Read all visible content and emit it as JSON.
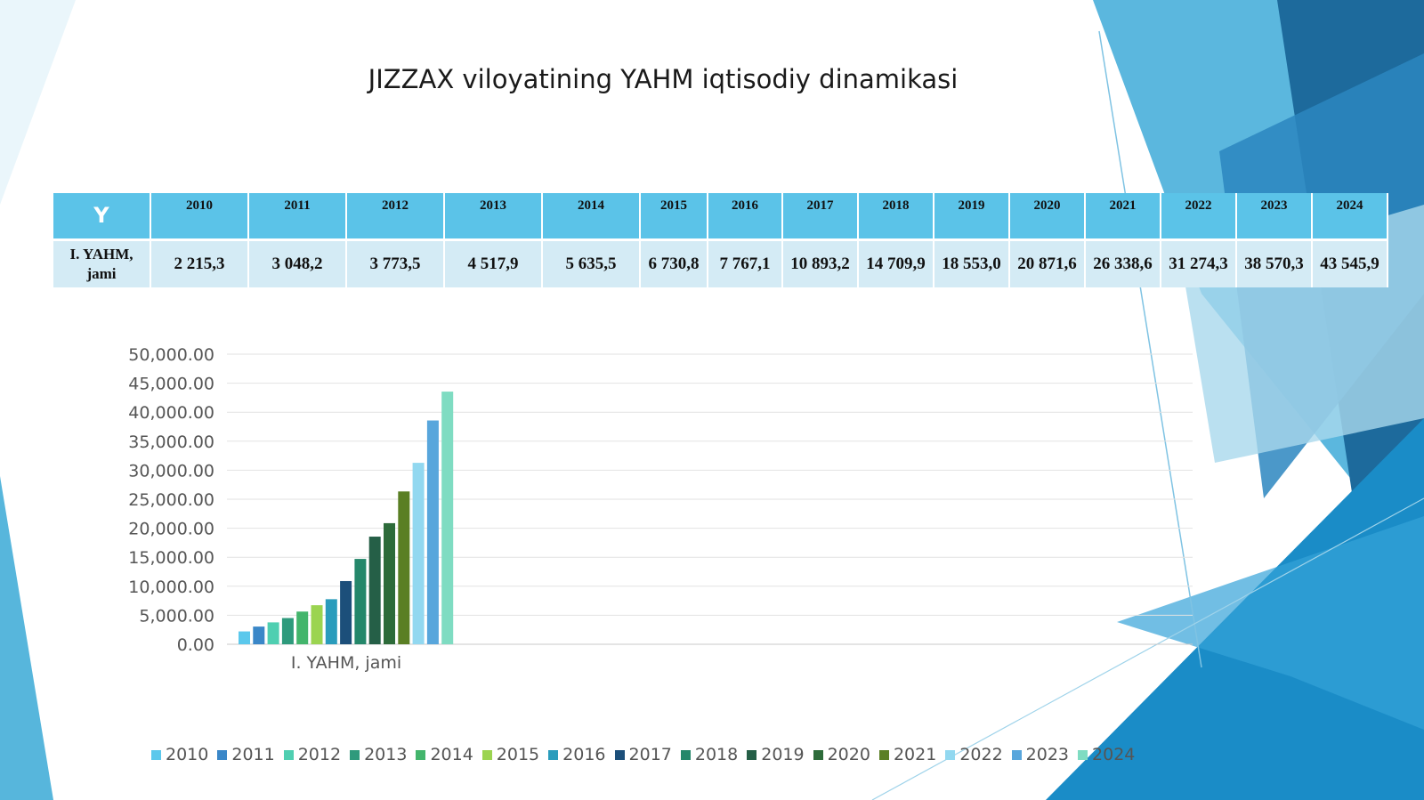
{
  "title": "JIZZAX viloyatining YAHM iqtisodiy dinamikasi",
  "table": {
    "corner": "Y",
    "row_label": "I. YAHM, jami",
    "years": [
      "2010",
      "2011",
      "2012",
      "2013",
      "2014",
      "2015",
      "2016",
      "2017",
      "2018",
      "2019",
      "2020",
      "2021",
      "2022",
      "2023",
      "2024"
    ],
    "values": [
      "2 215,3",
      "3 048,2",
      "3 773,5",
      "4 517,9",
      "5 635,5",
      "6 730,8",
      "7 767,1",
      "10 893,2",
      "14 709,9",
      "18 553,0",
      "20 871,6",
      "26 338,6",
      "31 274,3",
      "38 570,3",
      "43 545,9"
    ]
  },
  "chart_data": {
    "type": "bar",
    "categories": [
      "I. YAHM, jami"
    ],
    "series": [
      {
        "name": "2010",
        "values": [
          2215.3
        ],
        "color": "#5bc8ec"
      },
      {
        "name": "2011",
        "values": [
          3048.2
        ],
        "color": "#3a87c8"
      },
      {
        "name": "2012",
        "values": [
          3773.5
        ],
        "color": "#4fcfb1"
      },
      {
        "name": "2013",
        "values": [
          4517.9
        ],
        "color": "#2e9a7c"
      },
      {
        "name": "2014",
        "values": [
          5635.5
        ],
        "color": "#43b56c"
      },
      {
        "name": "2015",
        "values": [
          6730.8
        ],
        "color": "#9bd450"
      },
      {
        "name": "2016",
        "values": [
          7767.1
        ],
        "color": "#2a9cbc"
      },
      {
        "name": "2017",
        "values": [
          10893.2
        ],
        "color": "#1c4f7a"
      },
      {
        "name": "2018",
        "values": [
          14709.9
        ],
        "color": "#24876a"
      },
      {
        "name": "2019",
        "values": [
          18553.0
        ],
        "color": "#255f47"
      },
      {
        "name": "2020",
        "values": [
          20871.6
        ],
        "color": "#2d6b3a"
      },
      {
        "name": "2021",
        "values": [
          26338.6
        ],
        "color": "#5a7f24"
      },
      {
        "name": "2022",
        "values": [
          31274.3
        ],
        "color": "#92d8f0"
      },
      {
        "name": "2023",
        "values": [
          38570.3
        ],
        "color": "#58a6dc"
      },
      {
        "name": "2024",
        "values": [
          43545.9
        ],
        "color": "#7fdcc2"
      }
    ],
    "ylim": [
      0,
      50000
    ],
    "yticks": [
      "0.00",
      "5,000.00",
      "10,000.00",
      "15,000.00",
      "20,000.00",
      "25,000.00",
      "30,000.00",
      "35,000.00",
      "40,000.00",
      "45,000.00",
      "50,000.00"
    ],
    "grid": true,
    "legend": "bottom"
  }
}
